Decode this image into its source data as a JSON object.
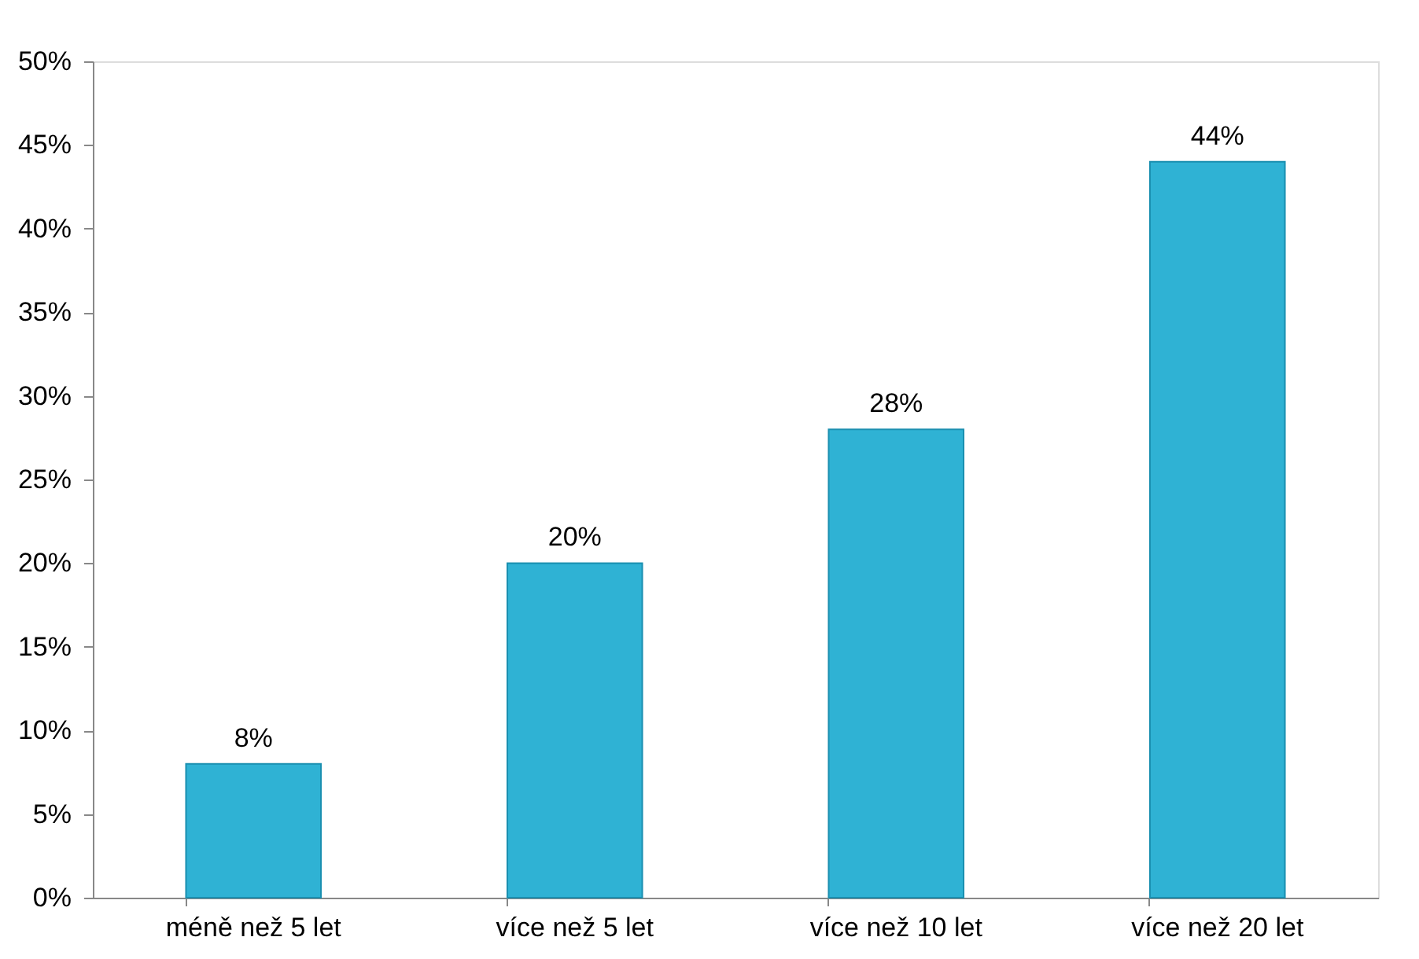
{
  "chart_data": {
    "type": "bar",
    "categories": [
      "méně než 5 let",
      "více než 5 let",
      "více než 10 let",
      "více než 20 let"
    ],
    "values": [
      8,
      20,
      28,
      44
    ],
    "value_labels": [
      "8%",
      "20%",
      "28%",
      "44%"
    ],
    "color": "#2fb2d4",
    "ylim": [
      0,
      50
    ],
    "yticks": [
      {
        "value": 0,
        "label": "0%"
      },
      {
        "value": 5,
        "label": "5%"
      },
      {
        "value": 10,
        "label": "10%"
      },
      {
        "value": 15,
        "label": "15%"
      },
      {
        "value": 20,
        "label": "20%"
      },
      {
        "value": 25,
        "label": "25%"
      },
      {
        "value": 30,
        "label": "30%"
      },
      {
        "value": 35,
        "label": "35%"
      },
      {
        "value": 40,
        "label": "40%"
      },
      {
        "value": 45,
        "label": "45%"
      },
      {
        "value": 50,
        "label": "50%"
      }
    ],
    "grid": false
  }
}
